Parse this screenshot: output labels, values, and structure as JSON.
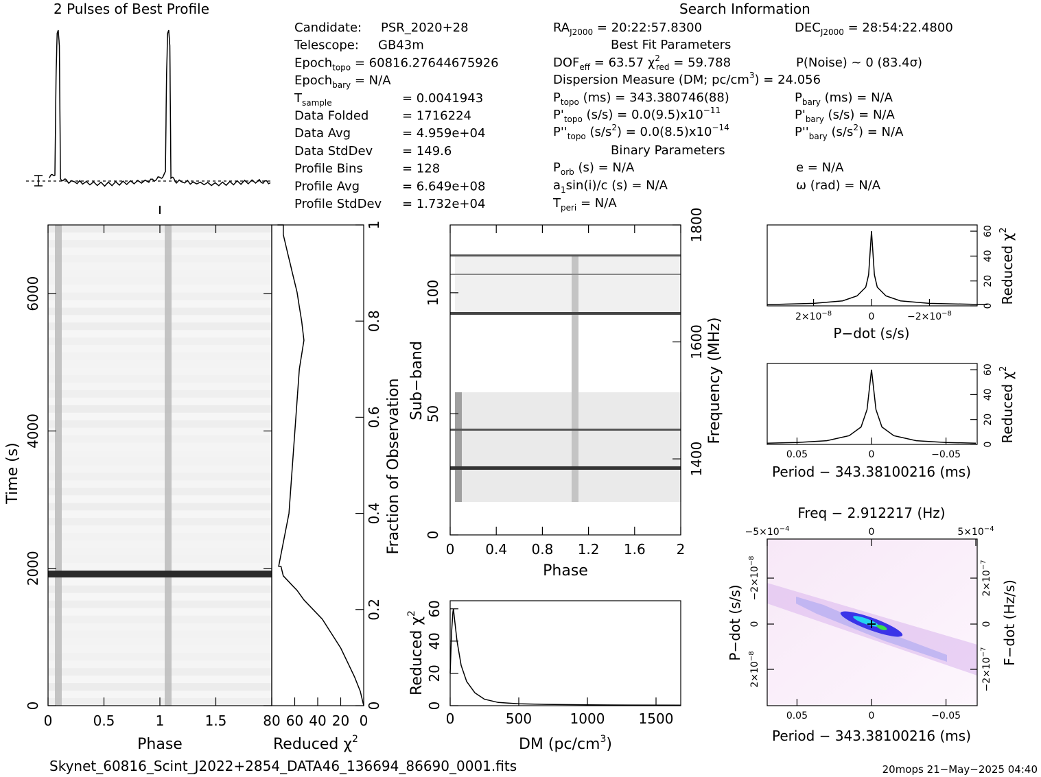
{
  "titles": {
    "profile": "2 Pulses of Best Profile",
    "search_info": "Search Information",
    "best_fit": "Best Fit Parameters",
    "binary": "Binary Parameters",
    "freq_axis": "Freq − 2.912217 (Hz)"
  },
  "footer": {
    "filename": "Skynet_60816_Scint_J2022+2854_DATA46_136694_86690_0001.fits",
    "stamp": "20mops 21−May−2025 04:40"
  },
  "info_left": [
    {
      "k": "Candidate:",
      "s": "",
      "v": "PSR_2020+28"
    },
    {
      "k": "Telescope:",
      "s": "",
      "v": "GB43m"
    },
    {
      "k": "Epoch",
      "s": "topo",
      "v": "= 60816.27644675926"
    },
    {
      "k": "Epoch",
      "s": "bary",
      "v": "= N/A"
    },
    {
      "k": "T",
      "s": "sample",
      "v": "=   0.0041943"
    },
    {
      "k": "Data Folded",
      "s": "",
      "v": "=   1716224"
    },
    {
      "k": "Data Avg",
      "s": "",
      "v": "=   4.959e+04"
    },
    {
      "k": "Data StdDev",
      "s": "",
      "v": "=   149.6"
    },
    {
      "k": "Profile Bins",
      "s": "",
      "v": "=   128"
    },
    {
      "k": "Profile Avg",
      "s": "",
      "v": "=   6.649e+08"
    },
    {
      "k": "Profile StdDev",
      "s": "",
      "v": "=   1.732e+04"
    }
  ],
  "info_mid": {
    "ra": "RA",
    "ra_sub": "J2000",
    "ra_val": " = 20:22:57.8300",
    "dec": "DEC",
    "dec_sub": "J2000",
    "dec_val": " = 28:54:22.4800",
    "dof": "DOF",
    "dof_sub": "eff",
    "dof_val": " = 63.57  ",
    "chi": "χ",
    "chi_sup": "2",
    "chi_sub": "red",
    "chi_val": " = 59.788",
    "pnoise": "P(Noise) ~ 0   (83.4σ)",
    "dm_line": "Dispersion Measure (DM; pc/cm",
    "dm_sup": "3",
    "dm_val": ") = 24.056",
    "p": "P",
    "topo": "topo",
    "bary": "bary",
    "p_topo_val": " (ms) =  343.380746(88)",
    "p_bary_val": " (ms) = N/A",
    "pd": "P'",
    "pd_topo_val": " (s/s) = 0.0(9.5)x10",
    "pd_topo_exp": "−11",
    "pd_bary_val": " (s/s) = N/A",
    "pdd": "P''",
    "pdd_topo_val": " (s/s",
    "pdd_sup": "2",
    "pdd_topo_val2": ") = 0.0(8.5)x10",
    "pdd_topo_exp": "−14",
    "pdd_bary_val2": ") = N/A",
    "porb": "P",
    "porb_sub": "orb",
    "porb_val": " (s) = N/A",
    "e_line": "e = N/A",
    "a1": "a",
    "a1_sub": "1",
    "a1_val": "sin(i)/c (s) = N/A",
    "omega": "ω (rad) = N/A",
    "tperi": "T",
    "tperi_sub": "peri",
    "tperi_val": " = N/A"
  },
  "axes": {
    "time_label": "Time (s)",
    "time_ticks": [
      "0",
      "2000",
      "4000",
      "6000"
    ],
    "phase_label": "Phase",
    "phase_ticks": [
      "0",
      "0.5",
      "1",
      "1.5"
    ],
    "redchi_label": "Reduced χ",
    "redchi_sup": "2",
    "redchi_ticks": [
      "80",
      "60",
      "40",
      "20",
      "0"
    ],
    "frac_label": "Fraction of Observation",
    "frac_ticks": [
      "0",
      "0.2",
      "0.4",
      "0.6",
      "0.8",
      "1"
    ],
    "subband_label": "Sub−band",
    "subband_ticks": [
      "0",
      "50",
      "100"
    ],
    "freq_label": "Frequency (MHz)",
    "freq_ticks": [
      "1400",
      "1600",
      "1800"
    ],
    "phase2_ticks": [
      "0",
      "0.4",
      "0.8",
      "1.2",
      "1.6",
      "2"
    ],
    "dm_label": "DM (pc/cm",
    "dm_sup": "3",
    "dm_close": ")",
    "dm_ticks": [
      "0",
      "500",
      "1000",
      "1500"
    ],
    "dmchi_ticks": [
      "0",
      "20",
      "40",
      "60"
    ],
    "pdot_label": "P−dot (s/s)",
    "pdot_ticks": [
      "2×10",
      "0",
      "−2×10"
    ],
    "pdot_exp": "−8",
    "period_label": "Period − 343.38100216 (ms)",
    "period_ticks": [
      "0.05",
      "0",
      "−0.05"
    ],
    "rchi_right_ticks": [
      "0",
      "20",
      "40",
      "60"
    ],
    "freq_top_ticks": [
      "−5×10",
      "0",
      "5×10"
    ],
    "freq_top_exp": "−4",
    "fdot_label": "F−dot (Hz/s)",
    "fdot_ticks": [
      "2×10",
      "0",
      "−2×10"
    ],
    "fdot_exp": "−7",
    "pdot_left_ticks": [
      "−2×10",
      "0",
      "2×10"
    ],
    "pdot_left_exp": "−8"
  },
  "chart_data": [
    {
      "type": "line",
      "title": "2 Pulses of Best Profile",
      "xlabel": "",
      "ylabel": "",
      "x": [
        0,
        0.05,
        0.06,
        0.07,
        0.08,
        0.09,
        0.1,
        0.15,
        0.3,
        0.5,
        0.7,
        0.9,
        1.0,
        1.05,
        1.06,
        1.07,
        1.08,
        1.09,
        1.1,
        1.15,
        1.3,
        1.5,
        1.7,
        1.9,
        2.0
      ],
      "y": [
        0.05,
        0.08,
        0.7,
        0.98,
        1.0,
        0.9,
        0.05,
        0.03,
        0.02,
        0.01,
        0.02,
        0.03,
        0.05,
        0.08,
        0.7,
        0.98,
        1.0,
        0.9,
        0.05,
        0.03,
        0.02,
        0.01,
        0.02,
        0.03,
        0.02
      ]
    },
    {
      "type": "line",
      "xlabel": "Reduced χ2",
      "ylabel": "Fraction of Observation",
      "xlim": [
        0,
        80
      ],
      "ylim": [
        0,
        1
      ],
      "x": [
        0,
        3,
        8,
        14,
        20,
        28,
        36,
        44,
        52,
        58,
        62,
        66,
        70,
        72,
        74,
        65,
        56,
        52,
        54,
        56,
        58,
        60,
        62,
        64,
        66,
        68,
        70,
        70,
        75
      ],
      "y": [
        0,
        0.03,
        0.06,
        0.09,
        0.12,
        0.15,
        0.18,
        0.2,
        0.22,
        0.24,
        0.25,
        0.26,
        0.27,
        0.29,
        0.29,
        0.4,
        0.7,
        0.76,
        0.8,
        0.83,
        0.86,
        0.88,
        0.9,
        0.92,
        0.94,
        0.96,
        0.98,
        1.0,
        1.0
      ]
    },
    {
      "type": "line",
      "xlabel": "DM (pc/cm3)",
      "ylabel": "Reduced χ2",
      "xlim": [
        0,
        1680
      ],
      "ylim": [
        0,
        65
      ],
      "x": [
        0,
        10,
        20,
        24,
        30,
        50,
        80,
        120,
        180,
        250,
        350,
        500,
        700,
        1000,
        1300,
        1680
      ],
      "y": [
        20,
        45,
        58,
        60,
        55,
        40,
        25,
        15,
        8,
        4,
        2,
        1.2,
        0.8,
        0.5,
        0.4,
        0.3
      ]
    },
    {
      "type": "line",
      "xlabel": "P−dot (s/s)",
      "ylabel": "Reduced χ2",
      "ylim": [
        0,
        65
      ],
      "x": [
        3.6e-08,
        2e-08,
        1e-08,
        5e-09,
        2e-09,
        1e-09,
        0,
        -1e-09,
        -2e-09,
        -5e-09,
        -1e-08,
        -2e-08,
        -4e-08
      ],
      "y": [
        1,
        2,
        4,
        8,
        15,
        25,
        60,
        25,
        15,
        8,
        4,
        2,
        1
      ]
    },
    {
      "type": "line",
      "xlabel": "Period − 343.38100216 (ms)",
      "ylabel": "Reduced χ2",
      "ylim": [
        0,
        65
      ],
      "x": [
        0.07,
        0.05,
        0.03,
        0.015,
        0.007,
        0.003,
        0,
        -0.003,
        -0.007,
        -0.015,
        -0.03,
        -0.05,
        -0.07
      ],
      "y": [
        1,
        1.5,
        3,
        7,
        14,
        28,
        60,
        28,
        14,
        7,
        3,
        1.5,
        1
      ]
    },
    {
      "type": "heatmap",
      "title": "Freq − 2.912217 (Hz)",
      "xlabel": "Period − 343.38100216 (ms)",
      "ylabel": "P−dot (s/s)"
    }
  ]
}
